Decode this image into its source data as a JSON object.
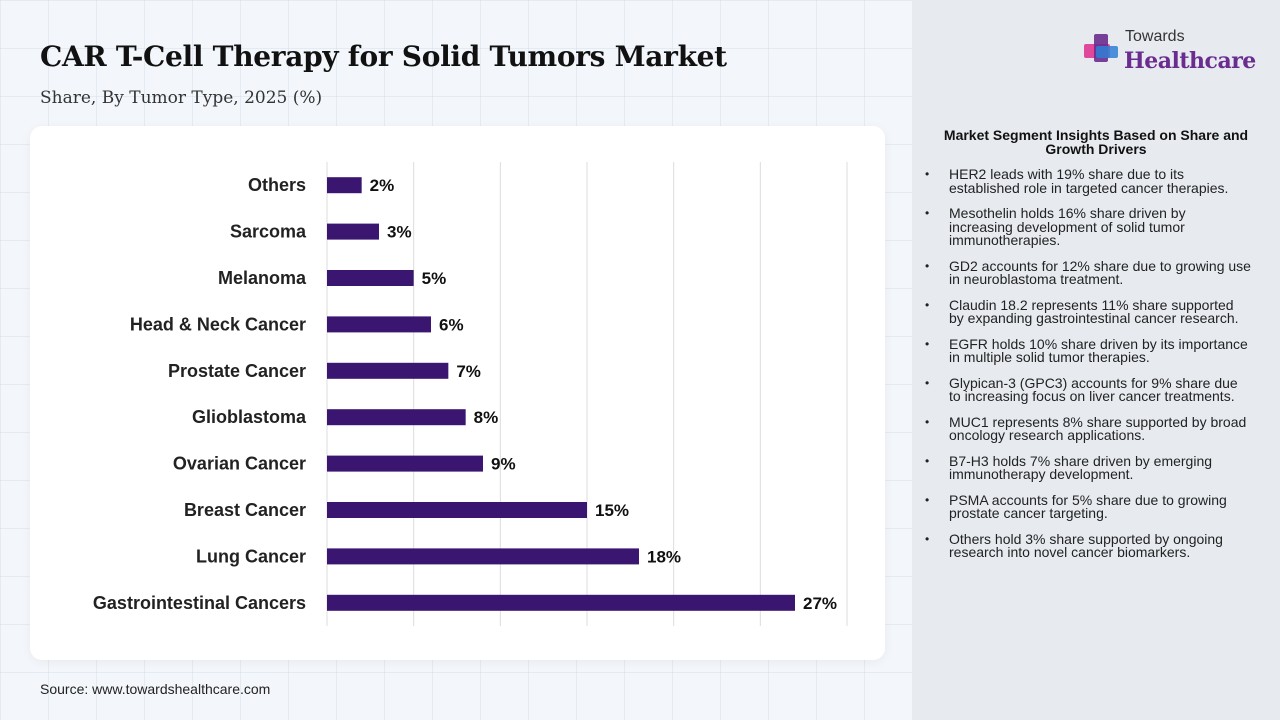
{
  "header": {
    "title": "CAR T-Cell Therapy for Solid Tumors Market",
    "subtitle": "Share, By Tumor Type, 2025 (%)"
  },
  "chart_data": {
    "type": "bar",
    "orientation": "horizontal",
    "categories": [
      "Others",
      "Sarcoma",
      "Melanoma",
      "Head & Neck Cancer",
      "Prostate Cancer",
      "Glioblastoma",
      "Ovarian Cancer",
      "Breast Cancer",
      "Lung Cancer",
      "Gastrointestinal Cancers"
    ],
    "values": [
      2,
      3,
      5,
      6,
      7,
      8,
      9,
      15,
      18,
      27
    ],
    "value_labels": [
      "2%",
      "3%",
      "5%",
      "6%",
      "7%",
      "8%",
      "9%",
      "15%",
      "18%",
      "27%"
    ],
    "unit": "%",
    "xlim": [
      0,
      30
    ],
    "grid": true,
    "bar_color": "#3a1670"
  },
  "source": "Source: www.towardshealthcare.com",
  "logo": {
    "top": "Towards",
    "bottom": "Healthcare",
    "colors": [
      "#e0489b",
      "#6a2c8e",
      "#2f7fd6"
    ]
  },
  "insights": {
    "title": "Market Segment Insights Based on Share and Growth Drivers",
    "bullet": "•",
    "items": [
      "HER2 leads with 19% share due to its established role in targeted cancer therapies.",
      "Mesothelin holds 16% share driven by increasing development of solid tumor immunotherapies.",
      "GD2 accounts for 12% share due to growing use in neuroblastoma treatment.",
      "Claudin 18.2 represents 11% share supported by expanding gastrointestinal cancer research.",
      "EGFR holds 10% share driven by its importance in multiple solid tumor therapies.",
      "Glypican-3 (GPC3) accounts for 9% share due to increasing focus on liver cancer treatments.",
      "MUC1 represents 8% share supported by broad oncology research applications.",
      "B7-H3 holds 7% share driven by emerging immunotherapy development.",
      "PSMA accounts for 5% share due to growing prostate cancer targeting.",
      "Others hold 3% share supported by ongoing research into novel cancer biomarkers."
    ]
  }
}
